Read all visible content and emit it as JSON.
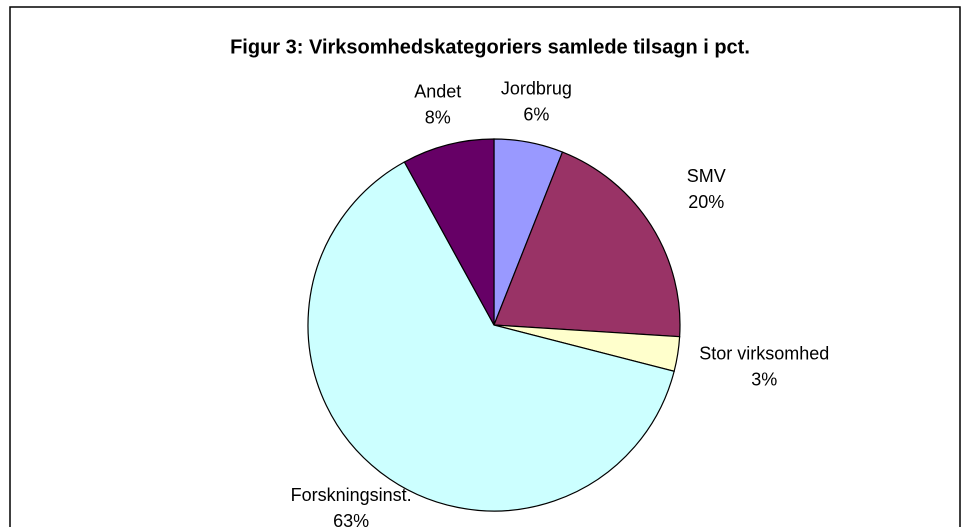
{
  "chart_data": {
    "type": "pie",
    "title": "Figur 3: Virksomhedskategoriers samlede tilsagn i pct.",
    "categories": [
      "Jordbrug",
      "SMV",
      "Stor virksomhed",
      "Forskningsinst.",
      "Andet"
    ],
    "values": [
      6,
      20,
      3,
      63,
      8
    ],
    "value_labels": [
      "6%",
      "20%",
      "3%",
      "63%",
      "8%"
    ],
    "colors": [
      "#9999ff",
      "#993366",
      "#ffffcc",
      "#ccffff",
      "#660066"
    ]
  }
}
